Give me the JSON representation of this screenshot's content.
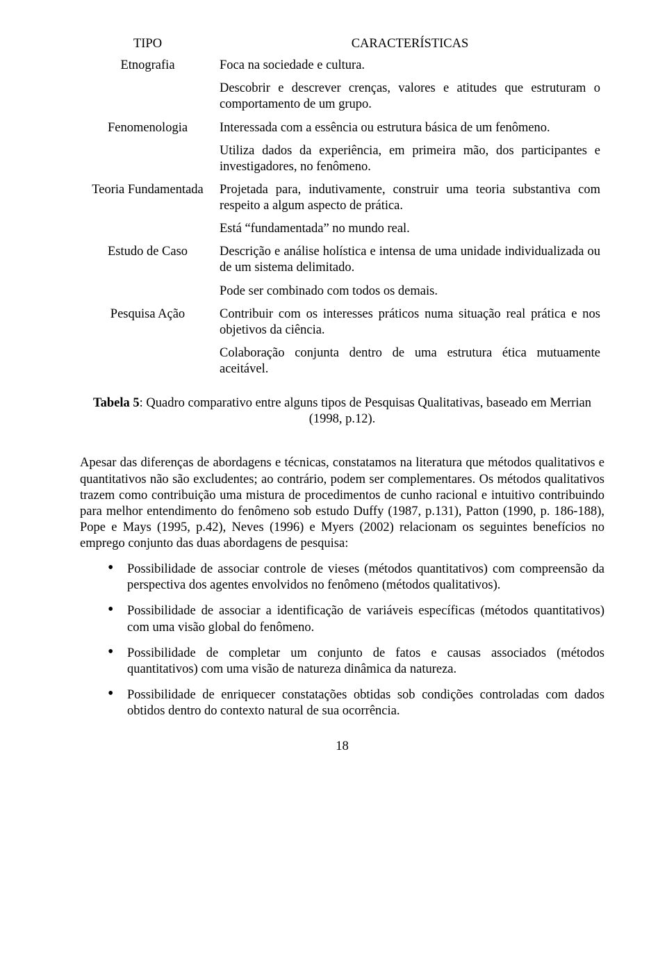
{
  "table": {
    "headers": {
      "tipo": "TIPO",
      "car": "CARACTERÍSTICAS"
    },
    "rows": [
      {
        "tipo": "Etnografia",
        "car": [
          "Foca na sociedade e cultura.",
          "Descobrir e descrever crenças, valores e atitudes que estruturam o comportamento de um grupo."
        ]
      },
      {
        "tipo": "Fenomenologia",
        "car": [
          "Interessada com a essência ou estrutura básica de um fenômeno.",
          "Utiliza dados da experiência, em primeira mão, dos participantes e investigadores, no fenômeno."
        ]
      },
      {
        "tipo": "Teoria Fundamentada",
        "car": [
          "Projetada para, indutivamente, construir uma teoria substantiva com respeito a algum aspecto de prática.",
          "Está “fundamentada” no mundo real."
        ]
      },
      {
        "tipo": "Estudo de Caso",
        "car": [
          "Descrição e análise holística e intensa de uma unidade individualizada ou de um sistema delimitado.",
          "Pode ser combinado com todos os demais."
        ]
      },
      {
        "tipo": "Pesquisa Ação",
        "car": [
          "Contribuir com os interesses práticos numa situação real prática e nos objetivos da ciência.",
          "Colaboração conjunta dentro de uma estrutura ética mutuamente aceitável."
        ]
      }
    ]
  },
  "caption": {
    "bold": "Tabela 5",
    "rest": ": Quadro comparativo entre alguns tipos de Pesquisas Qualitativas, baseado em Merrian (1998, p.12)."
  },
  "paragraph": "Apesar das diferenças de abordagens e técnicas, constatamos na literatura que métodos qualitativos e quantitativos não são excludentes; ao contrário, podem ser complementares. Os métodos qualitativos trazem como contribuição uma mistura de procedimentos de cunho racional e intuitivo contribuindo para melhor entendimento do fenômeno sob estudo Duffy (1987, p.131), Patton (1990, p. 186-188), Pope e Mays (1995, p.42), Neves (1996) e Myers (2002) relacionam os seguintes benefícios no emprego conjunto das duas abordagens de pesquisa:",
  "bullets": [
    "Possibilidade de associar controle de vieses (métodos quantitativos) com compreensão da perspectiva dos agentes envolvidos no fenômeno (métodos qualitativos).",
    "Possibilidade de associar a identificação de variáveis específicas (métodos quantitativos) com uma visão global do fenômeno.",
    "Possibilidade de completar um conjunto de fatos e causas associados (métodos quantitativos) com uma visão de natureza dinâmica da natureza.",
    "Possibilidade de enriquecer constatações obtidas sob condições controladas com dados obtidos dentro do contexto natural de sua ocorrência."
  ],
  "pagenum": "18"
}
